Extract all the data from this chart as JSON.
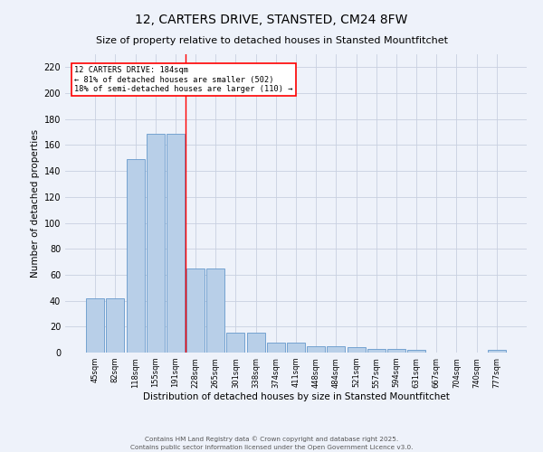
{
  "title": "12, CARTERS DRIVE, STANSTED, CM24 8FW",
  "subtitle": "Size of property relative to detached houses in Stansted Mountfitchet",
  "xlabel": "Distribution of detached houses by size in Stansted Mountfitchet",
  "ylabel": "Number of detached properties",
  "categories": [
    "45sqm",
    "82sqm",
    "118sqm",
    "155sqm",
    "191sqm",
    "228sqm",
    "265sqm",
    "301sqm",
    "338sqm",
    "374sqm",
    "411sqm",
    "448sqm",
    "484sqm",
    "521sqm",
    "557sqm",
    "594sqm",
    "631sqm",
    "667sqm",
    "704sqm",
    "740sqm",
    "777sqm"
  ],
  "values": [
    42,
    42,
    149,
    169,
    169,
    65,
    65,
    15,
    15,
    8,
    8,
    5,
    5,
    4,
    3,
    3,
    2,
    0,
    0,
    0,
    2
  ],
  "bar_color": "#b8cfe8",
  "bar_edge_color": "#6699cc",
  "red_line_x": 4.5,
  "annotation_line1": "12 CARTERS DRIVE: 184sqm",
  "annotation_line2": "← 81% of detached houses are smaller (502)",
  "annotation_line3": "18% of semi-detached houses are larger (110) →",
  "ylim": [
    0,
    230
  ],
  "yticks": [
    0,
    20,
    40,
    60,
    80,
    100,
    120,
    140,
    160,
    180,
    200,
    220
  ],
  "footer_line1": "Contains HM Land Registry data © Crown copyright and database right 2025.",
  "footer_line2": "Contains public sector information licensed under the Open Government Licence v3.0.",
  "bg_color": "#eef2fa",
  "grid_color": "#c8d0e0"
}
